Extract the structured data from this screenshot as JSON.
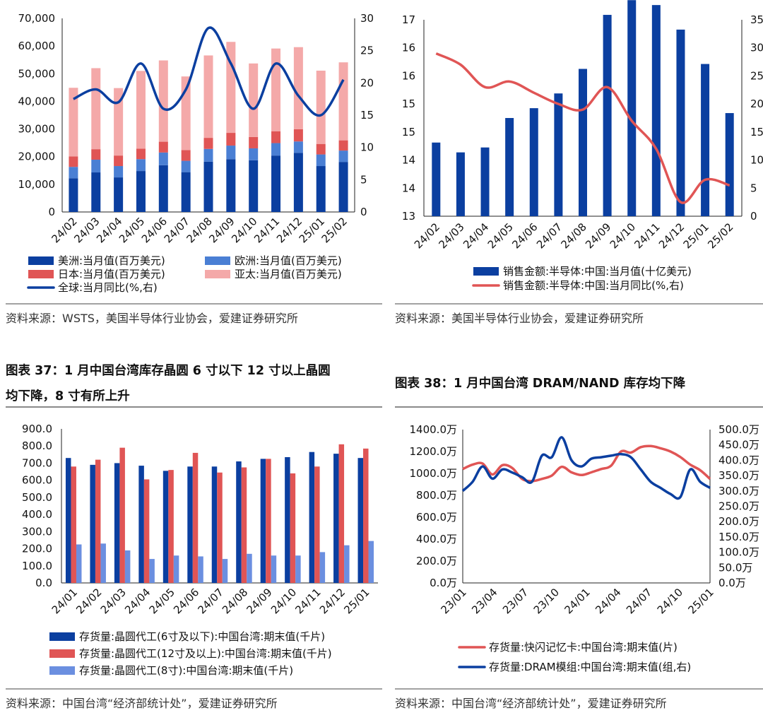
{
  "chart_data": [
    {
      "type": "bar",
      "stacked": true,
      "categories": [
        "24/02",
        "24/03",
        "24/04",
        "24/05",
        "24/06",
        "24/07",
        "24/08",
        "24/09",
        "24/10",
        "24/11",
        "24/12",
        "25/01",
        "25/02"
      ],
      "series": [
        {
          "name": "美洲:当月值(百万美元)",
          "color": "#0b3fa0",
          "values": [
            12200,
            14300,
            12500,
            14800,
            16900,
            14400,
            18200,
            19100,
            18700,
            20400,
            21400,
            16600,
            18100
          ]
        },
        {
          "name": "欧洲:当月值(百万美元)",
          "color": "#4a7fd4",
          "values": [
            4100,
            4600,
            4100,
            4300,
            4600,
            4100,
            4600,
            4900,
            4300,
            4500,
            4100,
            4200,
            4100
          ]
        },
        {
          "name": "日本:当月值(百万美元)",
          "color": "#e05555",
          "values": [
            3800,
            3800,
            3800,
            3800,
            3900,
            3900,
            4000,
            4600,
            4100,
            4300,
            4400,
            3800,
            3700
          ]
        },
        {
          "name": "亚太:当月值(百万美元)",
          "color": "#f4a9a9",
          "values": [
            24800,
            29300,
            24400,
            28100,
            29400,
            26600,
            29800,
            32900,
            26600,
            29900,
            29700,
            26500,
            28200
          ]
        },
        {
          "name": "全球:当月同比(%,右)",
          "color": "#0b3fa0",
          "axis": "right",
          "line": true,
          "values": [
            17.5,
            19,
            17,
            23,
            16,
            19,
            28.5,
            23,
            16,
            23,
            18,
            15,
            20.5
          ]
        }
      ],
      "ylim": [
        0,
        70000
      ],
      "y_ticks": [
        "0",
        "10,000",
        "20,000",
        "30,000",
        "40,000",
        "50,000",
        "60,000",
        "70,000"
      ],
      "y2lim": [
        0,
        30
      ],
      "y2_ticks": [
        "0",
        "5",
        "10",
        "15",
        "20",
        "25",
        "30"
      ],
      "legend": "bottom",
      "source": "资料来源：WSTS，美国半导体行业协会，爱建证券研究所"
    },
    {
      "type": "bar",
      "categories": [
        "24/02",
        "24/03",
        "24/04",
        "24/05",
        "24/06",
        "24/07",
        "24/08",
        "24/09",
        "24/10",
        "24/11",
        "24/12",
        "25/01",
        "25/02"
      ],
      "series": [
        {
          "name": "销售金额:半导体:中国:当月值(十亿美元)",
          "color": "#0b3fa0",
          "values": [
            14.5,
            14.3,
            14.4,
            15.0,
            15.2,
            15.5,
            16.0,
            17.1,
            17.4,
            17.3,
            16.8,
            16.1,
            15.1
          ]
        },
        {
          "name": "销售金额:半导体:中国:当月同比(%,右)",
          "color": "#e05555",
          "axis": "right",
          "line": true,
          "values": [
            29,
            27,
            23,
            24,
            22,
            20,
            19,
            23,
            17,
            12,
            2.5,
            6.5,
            5.5
          ]
        }
      ],
      "y_ticks": [
        "13",
        "14",
        "14",
        "15",
        "15",
        "16",
        "16",
        "17"
      ],
      "ylim": [
        13,
        17
      ],
      "y2_ticks": [
        "0",
        "5",
        "10",
        "15",
        "20",
        "25",
        "30",
        "35"
      ],
      "y2lim": [
        0,
        35
      ],
      "legend": "bottom",
      "source": "资料来源：美国半导体行业协会，爱建证券研究所"
    },
    {
      "type": "bar",
      "title": "图表 37：1 月中国台湾库存晶圆 6 寸以下 12 寸以上晶圆均下降，8 寸有所上升",
      "title_line1": "图表 37：1 月中国台湾库存晶圆 6 寸以下 12 寸以上晶圆",
      "title_line2": "均下降，8 寸有所上升",
      "categories": [
        "24/01",
        "24/02",
        "24/03",
        "24/04",
        "24/05",
        "24/06",
        "24/07",
        "24/08",
        "24/09",
        "24/10",
        "24/11",
        "24/12",
        "25/01"
      ],
      "series": [
        {
          "name": "存货量:晶圆代工(6寸及以下):中国台湾:期末值(千片)",
          "color": "#0b3fa0",
          "values": [
            730,
            690,
            700,
            685,
            655,
            680,
            680,
            710,
            725,
            735,
            765,
            755,
            730
          ]
        },
        {
          "name": "存货量:晶圆代工(12寸及以上):中国台湾:期末值(千片)",
          "color": "#e05555",
          "values": [
            680,
            720,
            790,
            605,
            660,
            760,
            645,
            675,
            725,
            640,
            680,
            810,
            785
          ]
        },
        {
          "name": "存货量:晶圆代工(8寸):中国台湾:期末值(千片)",
          "color": "#6b8fe0",
          "values": [
            225,
            230,
            190,
            140,
            160,
            155,
            140,
            170,
            160,
            160,
            180,
            220,
            245
          ]
        }
      ],
      "ylim": [
        0,
        900
      ],
      "y_ticks": [
        "0.0",
        "100.0",
        "200.0",
        "300.0",
        "400.0",
        "500.0",
        "600.0",
        "700.0",
        "800.0",
        "900.0"
      ],
      "legend": "bottom",
      "source": "资料来源：中国台湾“经济部统计处”，爱建证券研究所"
    },
    {
      "type": "line",
      "title": "图表 38：1 月中国台湾 DRAM/NAND 库存均下降",
      "x_ticks": [
        "23/01",
        "23/04",
        "23/07",
        "23/10",
        "24/01",
        "24/04",
        "24/07",
        "24/10",
        "25/01"
      ],
      "series": [
        {
          "name": "存货量:快闪记忆卡:中国台湾:期末值(片)",
          "color": "#e05555",
          "x": [
            0,
            1,
            2,
            3,
            4,
            5,
            6,
            7,
            8,
            9,
            10,
            11,
            12,
            13,
            14,
            15,
            16,
            17,
            18,
            19,
            20,
            21,
            22,
            23,
            24,
            25
          ],
          "values": [
            1040,
            1080,
            1090,
            990,
            1075,
            1050,
            950,
            930,
            950,
            980,
            1060,
            1010,
            985,
            1010,
            1040,
            1070,
            1200,
            1190,
            1240,
            1250,
            1230,
            1200,
            1150,
            1080,
            1030,
            950
          ]
        },
        {
          "name": "存货量:DRAM模组:中国台湾:期末值(组,右)",
          "color": "#0b3fa0",
          "axis": "right",
          "x": [
            0,
            1,
            2,
            3,
            4,
            5,
            6,
            7,
            8,
            9,
            10,
            11,
            12,
            13,
            14,
            15,
            16,
            17,
            18,
            19,
            20,
            21,
            22,
            23,
            24,
            25
          ],
          "values": [
            300,
            330,
            380,
            340,
            370,
            360,
            345,
            330,
            415,
            410,
            475,
            400,
            380,
            405,
            410,
            415,
            420,
            410,
            370,
            330,
            310,
            290,
            280,
            370,
            330,
            310
          ]
        }
      ],
      "ylim": [
        0,
        1400
      ],
      "y_ticks": [
        "0.0万",
        "200.0万",
        "400.0万",
        "600.0万",
        "800.0万",
        "1000.0万",
        "1200.0万",
        "1400.0万"
      ],
      "y2lim": [
        0,
        500
      ],
      "y2_ticks": [
        "0.0万",
        "50.0万",
        "100.0万",
        "150.0万",
        "200.0万",
        "250.0万",
        "300.0万",
        "350.0万",
        "400.0万",
        "450.0万",
        "500.0万"
      ],
      "legend": "bottom",
      "source": "资料来源：中国台湾“经济部统计处”，爱建证券研究所"
    }
  ]
}
